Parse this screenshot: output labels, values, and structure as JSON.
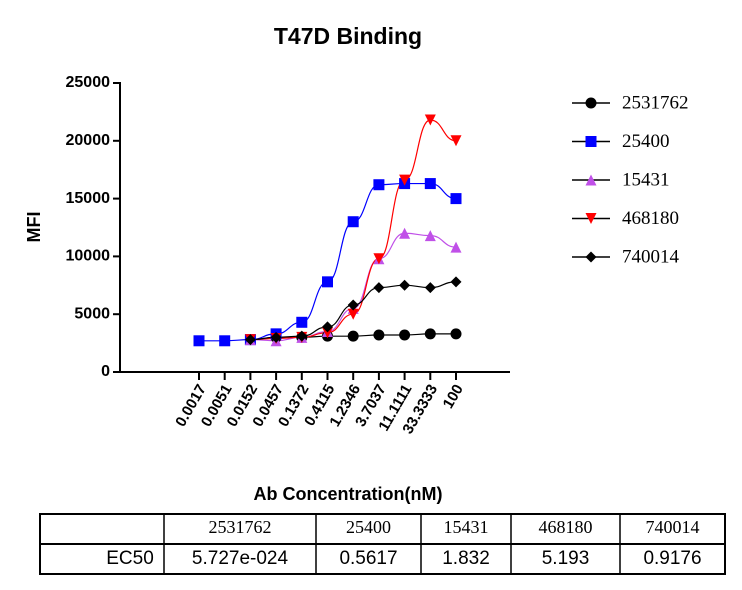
{
  "chart_data": {
    "type": "line",
    "title": "T47D  Binding",
    "x_label": "Ab Concentration(nM)",
    "y_label": "MFI",
    "categories": [
      "0.0017",
      "0.0051",
      "0.0152",
      "0.0457",
      "0.1372",
      "0.4115",
      "1.2346",
      "3.7037",
      "11.1111",
      "33.3333",
      "100"
    ],
    "ylim": [
      0,
      25000
    ],
    "yticks": [
      0,
      5000,
      10000,
      15000,
      20000,
      25000
    ],
    "series": [
      {
        "name": "2531762",
        "color": "#000000",
        "marker": "circle",
        "values": [
          null,
          null,
          2800,
          3000,
          3000,
          3100,
          3100,
          3200,
          3200,
          3300,
          3300
        ]
      },
      {
        "name": "25400",
        "color": "#0000ff",
        "marker": "square",
        "values": [
          2700,
          2700,
          2800,
          3300,
          4300,
          7800,
          13000,
          16200,
          16300,
          16300,
          15000
        ]
      },
      {
        "name": "15431",
        "color": "#c050e8",
        "marker": "triangle",
        "values": [
          null,
          null,
          2800,
          2700,
          3000,
          3500,
          5500,
          9800,
          12000,
          11800,
          10800
        ]
      },
      {
        "name": "468180",
        "color": "#ff0000",
        "marker": "triangle-down",
        "values": [
          null,
          null,
          2800,
          2900,
          3000,
          3400,
          5000,
          9800,
          16600,
          21800,
          20000
        ]
      },
      {
        "name": "740014",
        "color": "#000000",
        "marker": "diamond",
        "values": [
          null,
          null,
          2800,
          3000,
          3100,
          3900,
          5800,
          7300,
          7500,
          7300,
          7800
        ]
      }
    ]
  },
  "table": {
    "columns": [
      "2531762",
      "25400",
      "15431",
      "468180",
      "740014"
    ],
    "row_label": "EC50",
    "values": [
      "5.727e-024",
      "0.5617",
      "1.832",
      "5.193",
      "0.9176"
    ]
  }
}
